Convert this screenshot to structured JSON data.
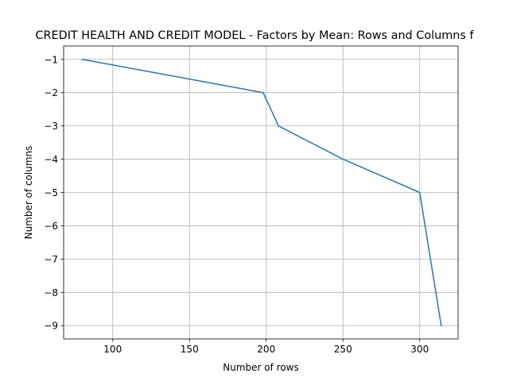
{
  "chart_data": {
    "type": "line",
    "title": "CREDIT HEALTH AND CREDIT MODEL - Factors by Mean: Rows and Columns f",
    "xlabel": "Number of rows",
    "ylabel": "Number of columns",
    "xlim": [
      68,
      325
    ],
    "ylim": [
      -9.4,
      -0.6
    ],
    "xticks": [
      100,
      150,
      200,
      250,
      300
    ],
    "yticks": [
      -1,
      -2,
      -3,
      -4,
      -5,
      -6,
      -7,
      -8,
      -9
    ],
    "grid": true,
    "legend": "none",
    "series": [
      {
        "color": "#1f77b4",
        "x": [
          80,
          198,
          208,
          250,
          300,
          314
        ],
        "y": [
          -1,
          -2,
          -3,
          -4,
          -5,
          -9
        ]
      }
    ]
  }
}
